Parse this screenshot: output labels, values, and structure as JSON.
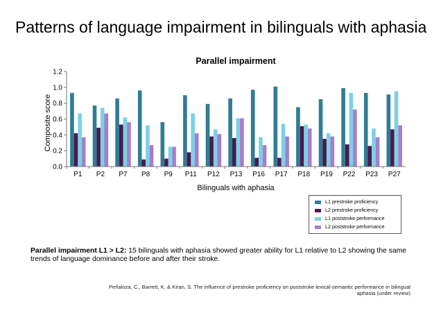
{
  "slide": {
    "title": "Patterns of language impairment in bilinguals with aphasia",
    "caption_bold": "Parallel impairment L1 > L2:",
    "caption_text": " 15 bilinguals with aphasia showed greater ability for L1 relative to L2 showing the same trends of language dominance before and after their stroke.",
    "citation": "Peñaloza, C., Barrett, K. & Kiran, S. The influence of prestroke proficiency on poststroke lexical-semantic performance in bilingual aphasia (under review)"
  },
  "chart_data": {
    "type": "bar",
    "title": "Parallel impairment",
    "xlabel": "Bilinguals with aphasia",
    "ylabel": "Composite score",
    "ylim": [
      0,
      1.2
    ],
    "yticks": [
      "0.0",
      "0.2",
      "0.4",
      "0.6",
      "0.8",
      "1.0",
      "1.2"
    ],
    "legend_position": "bottom-right",
    "categories": [
      "P1",
      "P2",
      "P7",
      "P8",
      "P9",
      "P11",
      "P12",
      "P13",
      "P16",
      "P17",
      "P18",
      "P19",
      "P22",
      "P23",
      "P27"
    ],
    "series": [
      {
        "name": "L1 prestroke proficiency",
        "color": "#2e7d94",
        "values": [
          0.93,
          0.77,
          0.86,
          0.96,
          0.56,
          0.9,
          0.79,
          0.86,
          0.97,
          1.01,
          0.75,
          0.85,
          0.99,
          0.93,
          0.91
        ]
      },
      {
        "name": "L2 prestroke proficiency",
        "color": "#4a1a4c",
        "values": [
          0.42,
          0.49,
          0.53,
          0.09,
          0.1,
          0.18,
          0.38,
          0.36,
          0.11,
          0.11,
          0.51,
          0.35,
          0.28,
          0.26,
          0.47
        ]
      },
      {
        "name": "L1 poststroke performance",
        "color": "#7ed0e6",
        "values": [
          0.67,
          0.74,
          0.62,
          0.52,
          0.25,
          0.67,
          0.47,
          0.61,
          0.37,
          0.54,
          0.53,
          0.42,
          0.93,
          0.48,
          0.95
        ]
      },
      {
        "name": "L2 poststroke performance",
        "color": "#a47fcb",
        "values": [
          0.37,
          0.67,
          0.56,
          0.27,
          0.25,
          0.42,
          0.41,
          0.61,
          0.27,
          0.38,
          0.48,
          0.38,
          0.72,
          0.37,
          0.52
        ]
      }
    ]
  }
}
